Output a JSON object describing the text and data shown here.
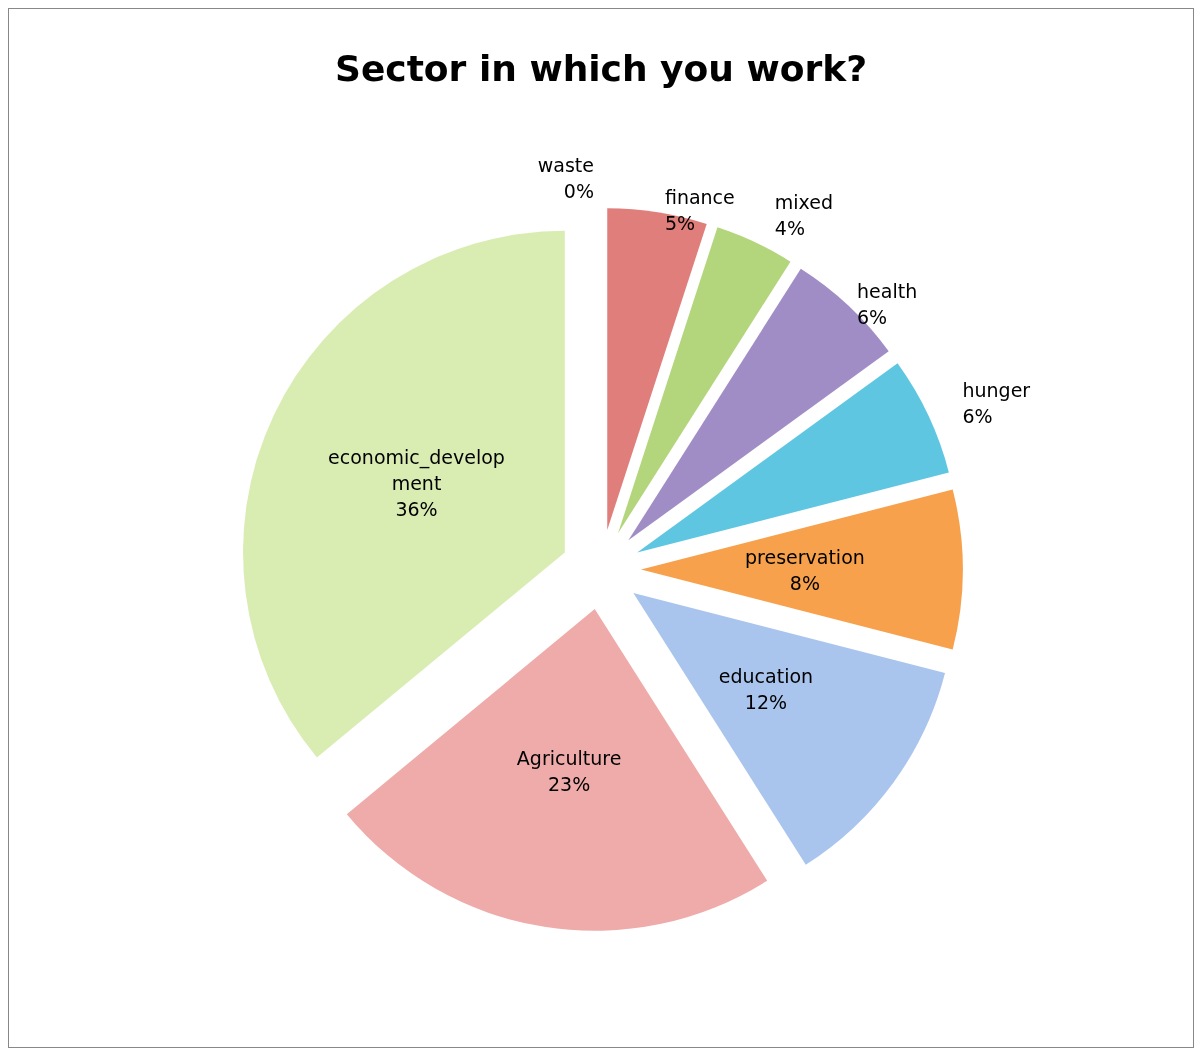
{
  "chart_data": {
    "type": "pie",
    "title": "Sector in which you work?",
    "categories": [
      "waste",
      "finance",
      "mixed",
      "health",
      "hunger",
      "preservation",
      "education",
      "Agriculture",
      "economic_development"
    ],
    "values": [
      0,
      5,
      4,
      6,
      6,
      8,
      12,
      23,
      36
    ],
    "value_labels": [
      "0%",
      "5%",
      "4%",
      "6%",
      "6%",
      "8%",
      "12%",
      "23%",
      "36%"
    ],
    "colors": [
      "#4f81bd",
      "#e07e7b",
      "#b3d57c",
      "#a18dc6",
      "#5fc6e2",
      "#f7a14c",
      "#a9c5ee",
      "#eeaba9",
      "#d9edb3"
    ],
    "legend": false
  }
}
